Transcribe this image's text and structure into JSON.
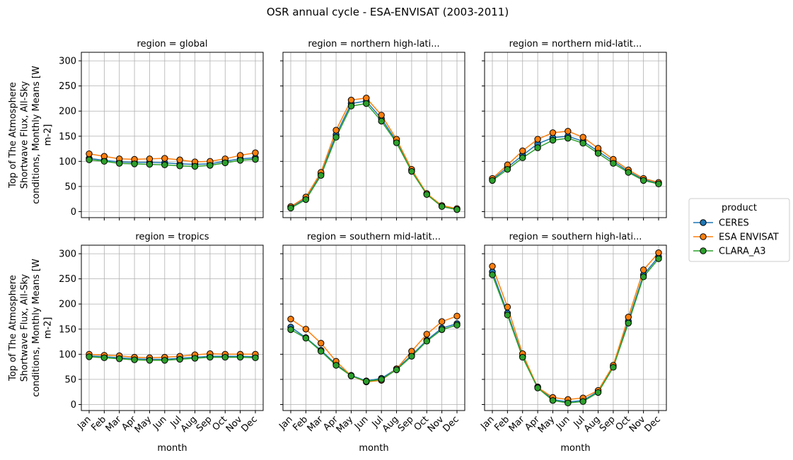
{
  "chart_data": {
    "type": "line",
    "title": "OSR annual cycle - ESA-ENVISAT (2003-2011)",
    "xlabel": "month",
    "ylabel": "Top of The Atmosphere Shortwave Flux, All-Sky conditions, Monthly Means [W m-2]",
    "ylabel_lines": [
      "Top of The Atmosphere",
      "Shortwave Flux, All-Sky",
      "conditions, Monthly Means [W",
      "m-2]"
    ],
    "ylim": [
      -12,
      317
    ],
    "yticks": [
      0,
      50,
      100,
      150,
      200,
      250,
      300
    ],
    "categories": [
      "Jan",
      "Feb",
      "Mar",
      "Apr",
      "May",
      "Jun",
      "Jul",
      "Aug",
      "Sep",
      "Oct",
      "Nov",
      "Dec"
    ],
    "grid": true,
    "legend": {
      "title": "product",
      "placement": "right",
      "entries": [
        {
          "name": "CERES",
          "color": "#1f77b4"
        },
        {
          "name": "ESA ENVISAT",
          "color": "#ff7f0e"
        },
        {
          "name": "CLARA_A3",
          "color": "#2ca02c"
        }
      ]
    },
    "panels": [
      {
        "title": "region = global",
        "series": [
          {
            "name": "CERES",
            "values": [
              106,
              102,
              99,
              98,
              98,
              97,
              95,
              94,
              95,
              100,
              105,
              107
            ]
          },
          {
            "name": "ESA ENVISAT",
            "values": [
              115,
              110,
              105,
              104,
              105,
              106,
              103,
              99,
              100,
              105,
              112,
              117
            ]
          },
          {
            "name": "CLARA_A3",
            "values": [
              103,
              100,
              96,
              95,
              94,
              93,
              91,
              90,
              92,
              97,
              102,
              104
            ]
          }
        ]
      },
      {
        "title": "region = northern high-lati...",
        "series": [
          {
            "name": "CERES",
            "values": [
              9,
              26,
              75,
              153,
              215,
              220,
              185,
              140,
              82,
              35,
              12,
              5
            ]
          },
          {
            "name": "ESA ENVISAT",
            "values": [
              10,
              29,
              78,
              162,
              222,
              226,
              192,
              144,
              84,
              36,
              12,
              6
            ]
          },
          {
            "name": "CLARA_A3",
            "values": [
              7,
              24,
              72,
              148,
              210,
              215,
              180,
              137,
              80,
              34,
              10,
              4
            ]
          }
        ]
      },
      {
        "title": "region = northern mid-latit...",
        "series": [
          {
            "name": "CERES",
            "values": [
              64,
              88,
              112,
              135,
              147,
              150,
              140,
              120,
              100,
              80,
              64,
              56
            ]
          },
          {
            "name": "ESA ENVISAT",
            "values": [
              66,
              93,
              121,
              144,
              157,
              160,
              148,
              126,
              104,
              83,
              66,
              58
            ]
          },
          {
            "name": "CLARA_A3",
            "values": [
              62,
              84,
              107,
              127,
              142,
              146,
              136,
              116,
              96,
              78,
              62,
              55
            ]
          }
        ]
      },
      {
        "title": "region = tropics",
        "series": [
          {
            "name": "CERES",
            "values": [
              97,
              95,
              93,
              91,
              90,
              90,
              92,
              94,
              96,
              96,
              96,
              95
            ]
          },
          {
            "name": "ESA ENVISAT",
            "values": [
              100,
              98,
              97,
              94,
              93,
              94,
              96,
              99,
              101,
              100,
              100,
              100
            ]
          },
          {
            "name": "CLARA_A3",
            "values": [
              95,
              93,
              91,
              89,
              88,
              88,
              90,
              92,
              94,
              94,
              94,
              93
            ]
          }
        ]
      },
      {
        "title": "region = southern mid-latit...",
        "series": [
          {
            "name": "CERES",
            "values": [
              154,
              133,
              108,
              80,
              58,
              47,
              52,
              71,
              98,
              128,
              152,
              161
            ]
          },
          {
            "name": "ESA ENVISAT",
            "values": [
              170,
              150,
              122,
              86,
              57,
              45,
              48,
              71,
              106,
              140,
              165,
              176
            ]
          },
          {
            "name": "CLARA_A3",
            "values": [
              149,
              132,
              106,
              78,
              57,
              46,
              50,
              69,
              96,
              126,
              149,
              158
            ]
          }
        ]
      },
      {
        "title": "region = southern high-lati...",
        "series": [
          {
            "name": "CERES",
            "values": [
              264,
              182,
              96,
              35,
              10,
              5,
              8,
              26,
              76,
              166,
              258,
              294
            ]
          },
          {
            "name": "ESA ENVISAT",
            "values": [
              275,
              194,
              101,
              34,
              14,
              10,
              13,
              28,
              78,
              174,
              268,
              302
            ]
          },
          {
            "name": "CLARA_A3",
            "values": [
              258,
              178,
              94,
              33,
              8,
              3,
              6,
              24,
              74,
              162,
              254,
              290
            ]
          }
        ]
      }
    ]
  }
}
